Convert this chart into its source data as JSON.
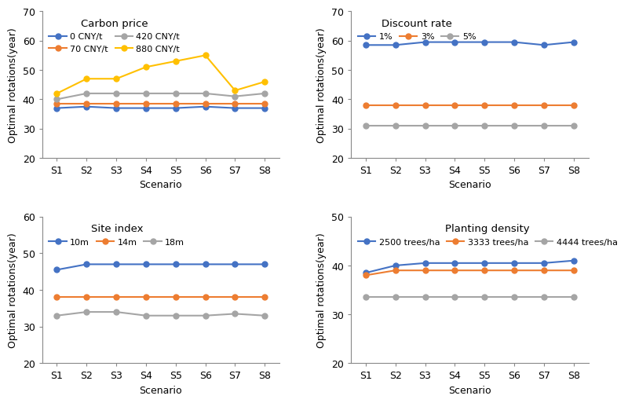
{
  "scenarios": [
    "S1",
    "S2",
    "S3",
    "S4",
    "S5",
    "S6",
    "S7",
    "S8"
  ],
  "panel1": {
    "title": "Carbon price",
    "series": [
      {
        "label": "0 CNY/t",
        "color": "#4472C4",
        "values": [
          37.0,
          37.5,
          37.0,
          37.0,
          37.0,
          37.5,
          37.0,
          37.0
        ]
      },
      {
        "label": "70 CNY/t",
        "color": "#ED7D31",
        "values": [
          38.5,
          38.5,
          38.5,
          38.5,
          38.5,
          38.5,
          38.5,
          38.5
        ]
      },
      {
        "label": "420 CNY/t",
        "color": "#A5A5A5",
        "values": [
          40.0,
          42.0,
          42.0,
          42.0,
          42.0,
          42.0,
          41.0,
          42.0
        ]
      },
      {
        "label": "880 CNY/t",
        "color": "#FFC000",
        "values": [
          42.0,
          47.0,
          47.0,
          51.0,
          53.0,
          55.0,
          43.0,
          46.0
        ]
      }
    ],
    "ylim": [
      20,
      70
    ],
    "yticks": [
      20,
      30,
      40,
      50,
      60,
      70
    ]
  },
  "panel2": {
    "title": "Discount rate",
    "series": [
      {
        "label": "1%",
        "color": "#4472C4",
        "values": [
          58.5,
          58.5,
          59.5,
          59.5,
          59.5,
          59.5,
          58.5,
          59.5
        ]
      },
      {
        "label": "3%",
        "color": "#ED7D31",
        "values": [
          38.0,
          38.0,
          38.0,
          38.0,
          38.0,
          38.0,
          38.0,
          38.0
        ]
      },
      {
        "label": "5%",
        "color": "#A5A5A5",
        "values": [
          31.0,
          31.0,
          31.0,
          31.0,
          31.0,
          31.0,
          31.0,
          31.0
        ]
      }
    ],
    "ylim": [
      20,
      70
    ],
    "yticks": [
      20,
      30,
      40,
      50,
      60,
      70
    ]
  },
  "panel3": {
    "title": "Site index",
    "series": [
      {
        "label": "10m",
        "color": "#4472C4",
        "values": [
          45.5,
          47.0,
          47.0,
          47.0,
          47.0,
          47.0,
          47.0,
          47.0
        ]
      },
      {
        "label": "14m",
        "color": "#ED7D31",
        "values": [
          38.0,
          38.0,
          38.0,
          38.0,
          38.0,
          38.0,
          38.0,
          38.0
        ]
      },
      {
        "label": "18m",
        "color": "#A5A5A5",
        "values": [
          33.0,
          34.0,
          34.0,
          33.0,
          33.0,
          33.0,
          33.5,
          33.0
        ]
      }
    ],
    "ylim": [
      20,
      60
    ],
    "yticks": [
      20,
      30,
      40,
      50,
      60
    ]
  },
  "panel4": {
    "title": "Planting density",
    "series": [
      {
        "label": "2500 trees/ha",
        "color": "#4472C4",
        "values": [
          38.5,
          40.0,
          40.5,
          40.5,
          40.5,
          40.5,
          40.5,
          41.0
        ]
      },
      {
        "label": "3333 trees/ha",
        "color": "#ED7D31",
        "values": [
          38.0,
          39.0,
          39.0,
          39.0,
          39.0,
          39.0,
          39.0,
          39.0
        ]
      },
      {
        "label": "4444 trees/ha",
        "color": "#A5A5A5",
        "values": [
          33.5,
          33.5,
          33.5,
          33.5,
          33.5,
          33.5,
          33.5,
          33.5
        ]
      }
    ],
    "ylim": [
      20,
      50
    ],
    "yticks": [
      20,
      30,
      40,
      50
    ]
  },
  "xlabel": "Scenario",
  "ylabel": "Optimal rotations(year)",
  "marker": "o",
  "markersize": 5,
  "linewidth": 1.5,
  "bg_color": "#FFFFFF",
  "legend_fontsize": 8,
  "axis_fontsize": 9,
  "title_fontsize": 9.5
}
